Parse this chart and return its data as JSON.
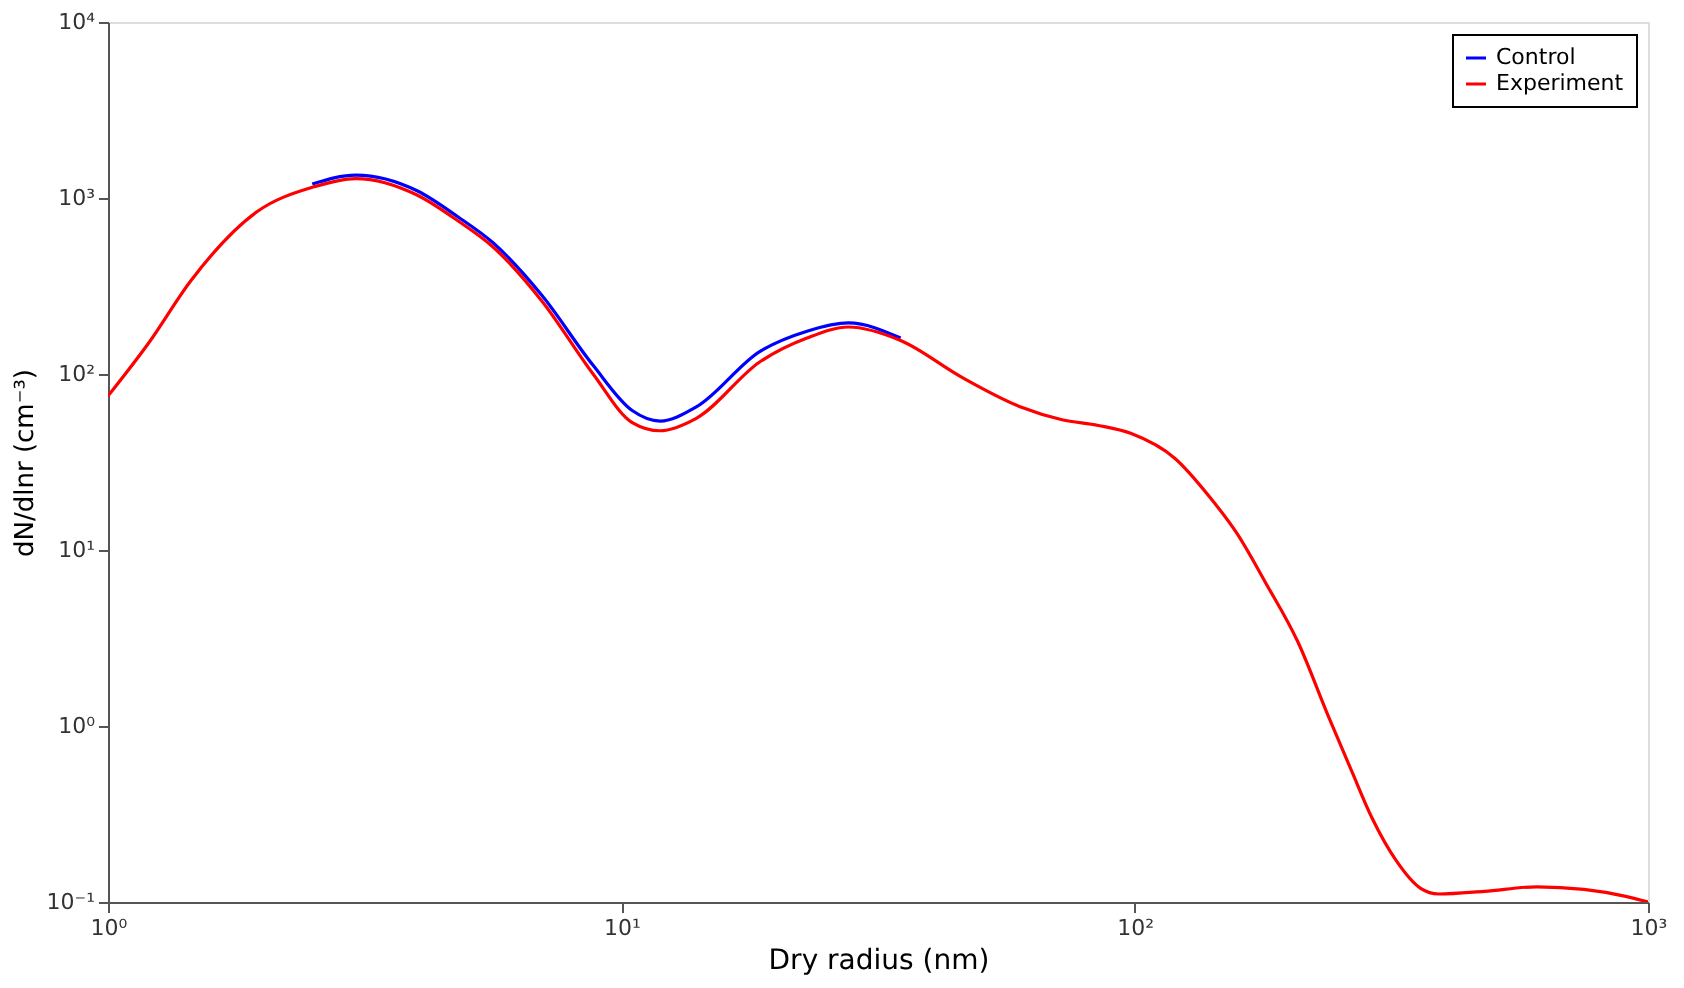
{
  "chart_data": {
    "type": "line",
    "xlabel": "Dry radius (nm)",
    "ylabel": "dN/dlnr (cm⁻³)",
    "log": "xy",
    "grid": false,
    "legend": "top right",
    "line_style": "solid",
    "marker": "none",
    "x": [
      1,
      1.2,
      1.45,
      1.95,
      2.5,
      3.04,
      4,
      4.81,
      5.61,
      7,
      8.81,
      10.5,
      11.9,
      14,
      18.6,
      23,
      27.7,
      35,
      46,
      60,
      72.2,
      85,
      98.2,
      120,
      140,
      158,
      180,
      208,
      238,
      265,
      290,
      324,
      360,
      391,
      480,
      608,
      750,
      900,
      1000
    ],
    "series": [
      {
        "name": "Control",
        "color": "#0000ff",
        "values": [
          null,
          null,
          null,
          null,
          1200,
          1350,
          1100,
          780,
          560,
          280,
          112,
          62,
          54,
          65,
          134,
          175,
          195,
          160,
          null,
          null,
          null,
          null,
          null,
          null,
          null,
          null,
          null,
          null,
          null,
          null,
          null,
          null,
          null,
          null,
          null,
          null,
          null,
          null,
          null
        ]
      },
      {
        "name": "Experiment",
        "color": "#ff0000",
        "values": [
          75,
          150,
          339,
          835,
          1150,
          1290,
          1040,
          740,
          530,
          260,
          100,
          53,
          47.6,
          56,
          117,
          160,
          185,
          155,
          96,
          65,
          55,
          51,
          46,
          33,
          20,
          12.5,
          6.5,
          3,
          1.15,
          0.55,
          0.3,
          0.17,
          0.12,
          0.111,
          0.115,
          0.122,
          0.118,
          0.108,
          0.1
        ]
      }
    ],
    "xlim": [
      1,
      1000
    ],
    "xticks": [
      {
        "value": 1,
        "label": "10⁰"
      },
      {
        "value": 10,
        "label": "10¹"
      },
      {
        "value": 100,
        "label": "10²"
      },
      {
        "value": 1000,
        "label": "10³"
      }
    ],
    "ylim": [
      0.1,
      10000
    ],
    "yticks": [
      {
        "value": 0.1,
        "label": "10⁻¹"
      },
      {
        "value": 1,
        "label": "10⁰"
      },
      {
        "value": 10,
        "label": "10¹"
      },
      {
        "value": 100,
        "label": "10²"
      },
      {
        "value": 1000,
        "label": "10³"
      },
      {
        "value": 10000,
        "label": "10⁴"
      }
    ]
  }
}
